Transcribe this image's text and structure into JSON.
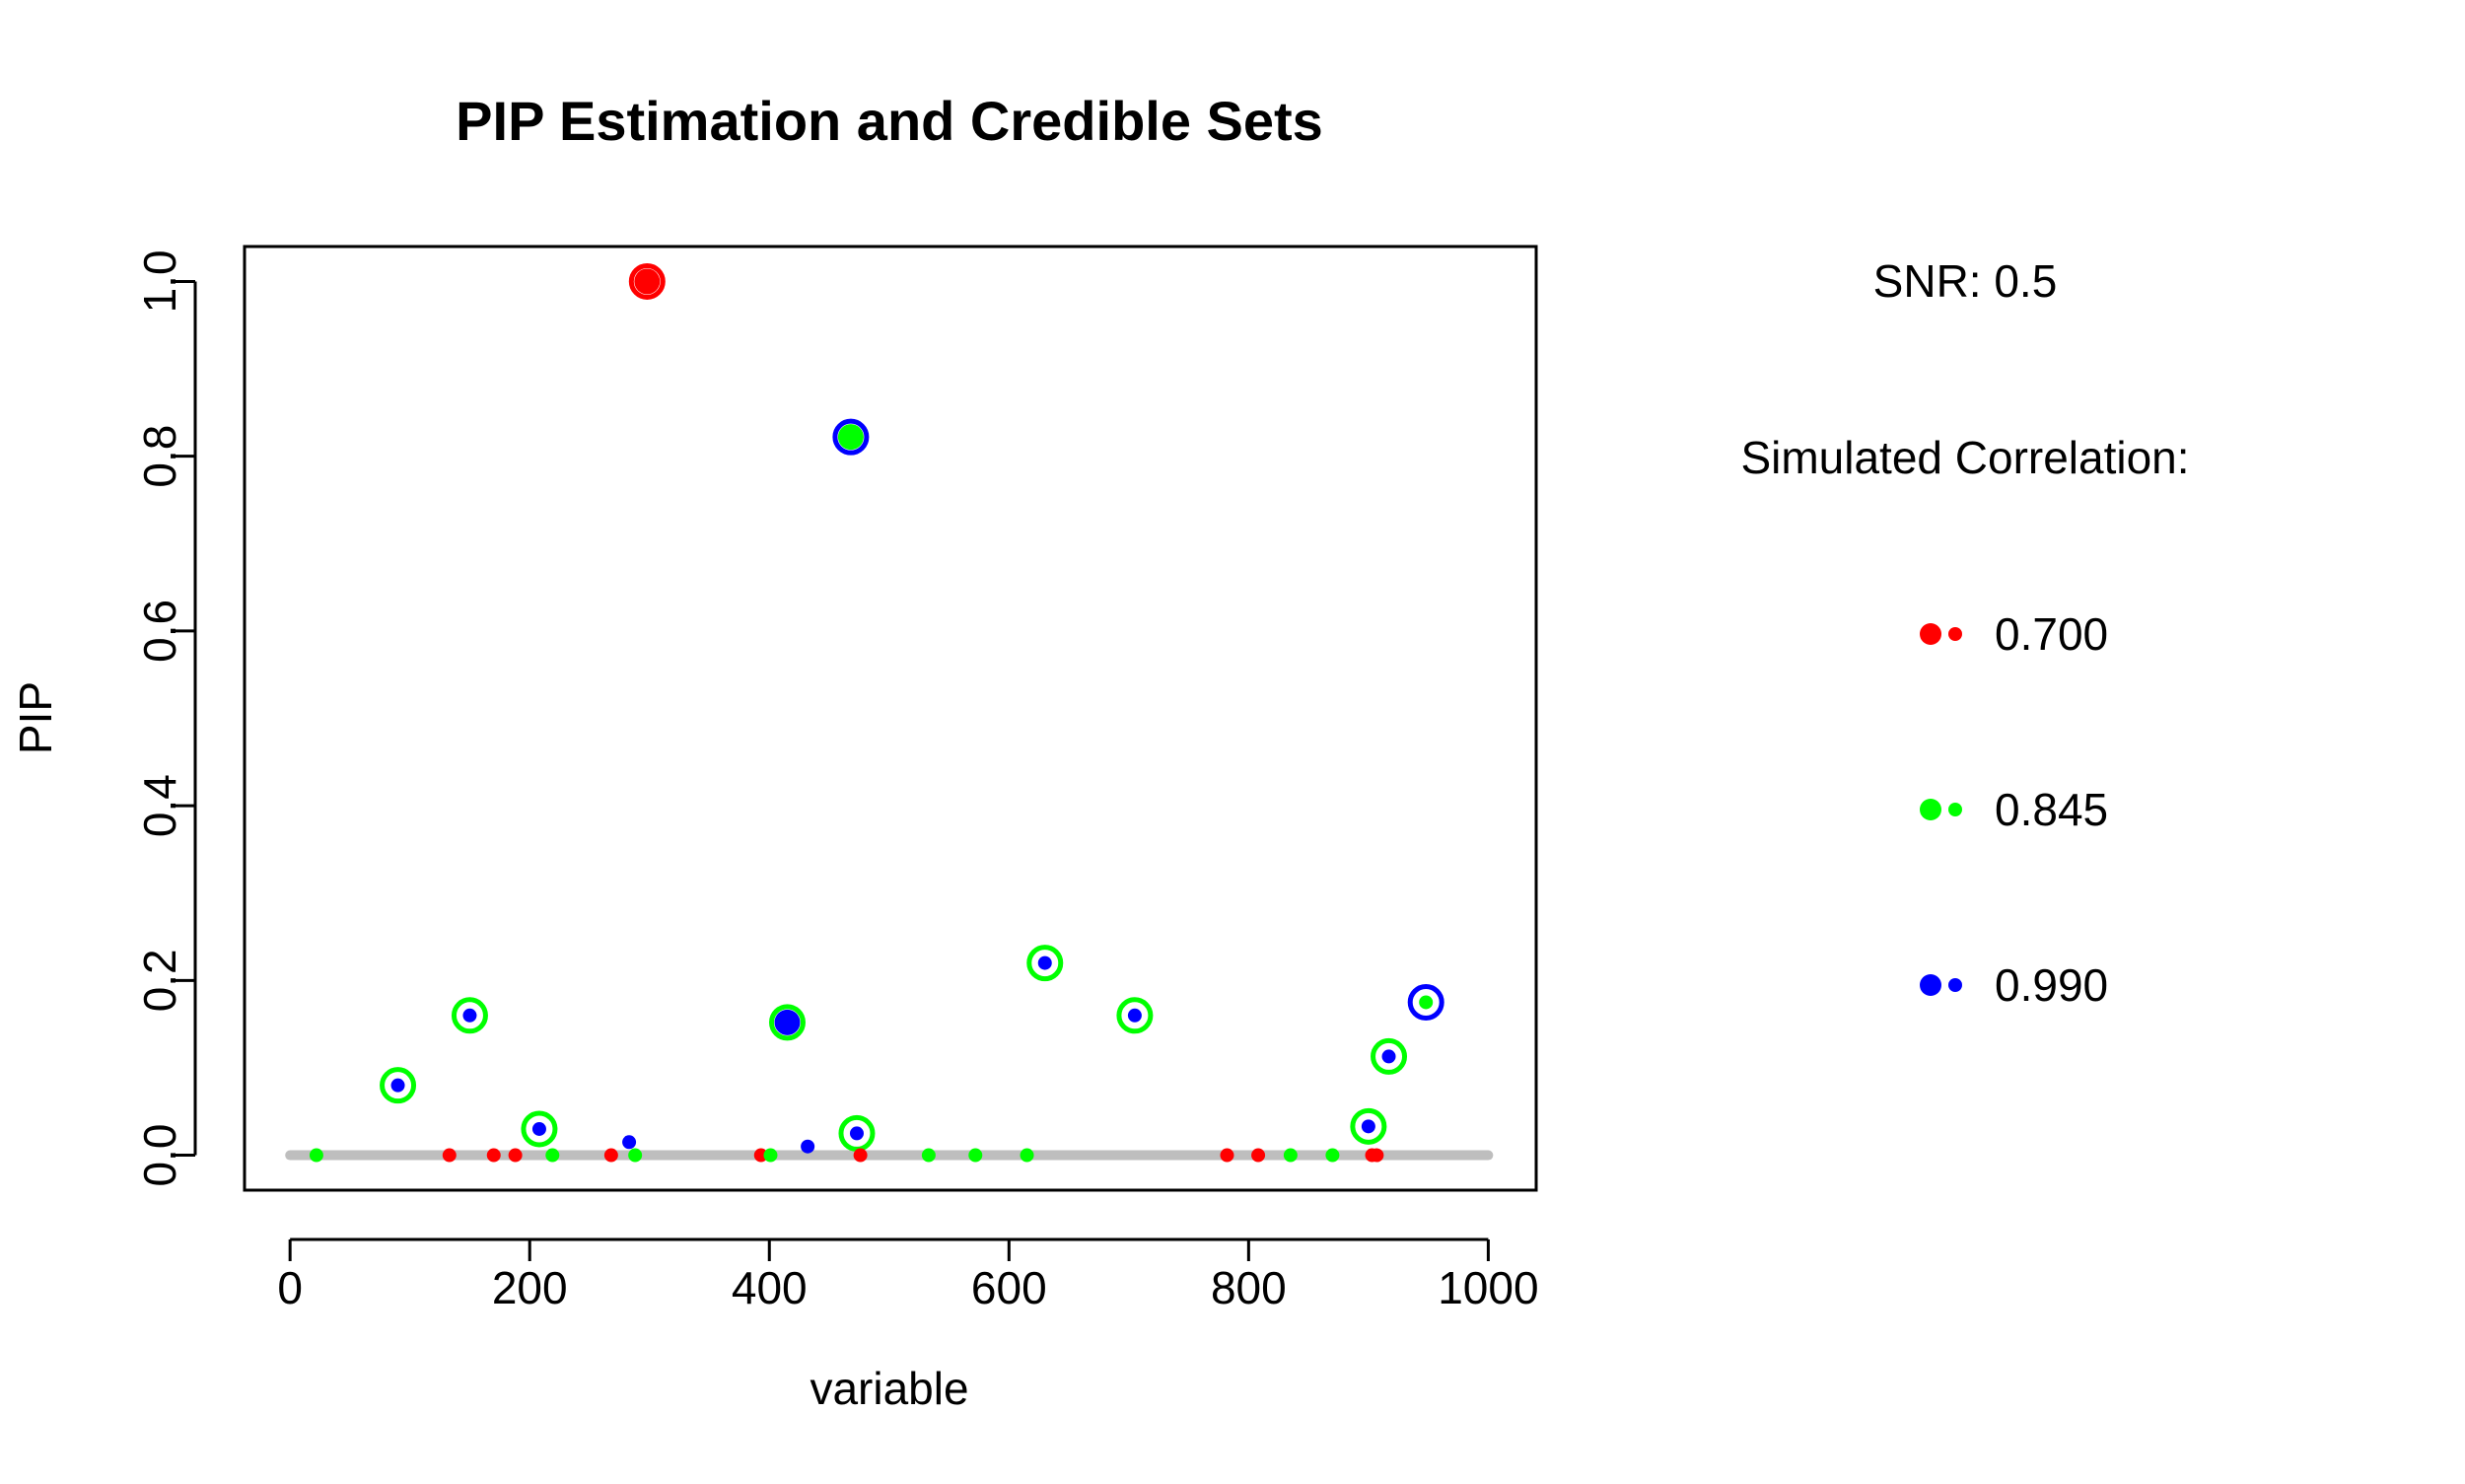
{
  "chart_data": {
    "type": "scatter",
    "title": "PIP Estimation and Credible Sets",
    "xlabel": "variable",
    "ylabel": "PIP",
    "xlim": [
      -38,
      1040
    ],
    "ylim": [
      -0.04,
      1.04
    ],
    "x_ticks": [
      0,
      200,
      400,
      600,
      800,
      1000
    ],
    "x_tick_labels": [
      "0",
      "200",
      "400",
      "600",
      "800",
      "1000"
    ],
    "y_ticks": [
      0.0,
      0.2,
      0.4,
      0.6,
      0.8,
      1.0
    ],
    "y_tick_labels": [
      "0.0",
      "0.2",
      "0.4",
      "0.6",
      "0.8",
      "1.0"
    ],
    "grid": false,
    "baseline": {
      "y": 0,
      "x_from": 0,
      "x_to": 1000,
      "color": "#bebebe"
    },
    "snr_label": "SNR: 0.5",
    "legend_title": "Simulated Correlation:",
    "legend_position": "right",
    "series": [
      {
        "name": "0.700",
        "color": "#ff0000",
        "points": [
          {
            "x": 133,
            "y": 0.0
          },
          {
            "x": 170,
            "y": 0.0
          },
          {
            "x": 188,
            "y": 0.0
          },
          {
            "x": 268,
            "y": 0.0
          },
          {
            "x": 298,
            "y": 1.0
          },
          {
            "x": 393,
            "y": 0.0
          },
          {
            "x": 476,
            "y": 0.0
          },
          {
            "x": 782,
            "y": 0.0
          },
          {
            "x": 808,
            "y": 0.0
          },
          {
            "x": 903,
            "y": 0.0
          },
          {
            "x": 907,
            "y": 0.0
          }
        ],
        "credible_sets": [
          {
            "x": 298,
            "y": 1.0,
            "ring": "#ff0000"
          }
        ]
      },
      {
        "name": "0.845",
        "color": "#00ff00",
        "points": [
          {
            "x": 22,
            "y": 0.0
          },
          {
            "x": 219,
            "y": 0.0
          },
          {
            "x": 288,
            "y": 0.0
          },
          {
            "x": 401,
            "y": 0.0
          },
          {
            "x": 468,
            "y": 0.822
          },
          {
            "x": 533,
            "y": 0.0
          },
          {
            "x": 572,
            "y": 0.0
          },
          {
            "x": 615,
            "y": 0.0
          },
          {
            "x": 835,
            "y": 0.0
          },
          {
            "x": 870,
            "y": 0.0
          },
          {
            "x": 948,
            "y": 0.175
          }
        ],
        "credible_sets": [
          {
            "x": 468,
            "y": 0.822,
            "ring": "#0000ff"
          },
          {
            "x": 948,
            "y": 0.175,
            "ring": "#0000ff"
          }
        ]
      },
      {
        "name": "0.990",
        "color": "#0000ff",
        "points": [
          {
            "x": 90,
            "y": 0.08
          },
          {
            "x": 150,
            "y": 0.16
          },
          {
            "x": 208,
            "y": 0.03
          },
          {
            "x": 283,
            "y": 0.015
          },
          {
            "x": 415,
            "y": 0.152
          },
          {
            "x": 432,
            "y": 0.01
          },
          {
            "x": 473,
            "y": 0.025
          },
          {
            "x": 630,
            "y": 0.22
          },
          {
            "x": 705,
            "y": 0.16
          },
          {
            "x": 900,
            "y": 0.033
          },
          {
            "x": 917,
            "y": 0.113
          }
        ],
        "credible_sets": [
          {
            "x": 90,
            "y": 0.08,
            "ring": "#00ff00"
          },
          {
            "x": 150,
            "y": 0.16,
            "ring": "#00ff00"
          },
          {
            "x": 208,
            "y": 0.03,
            "ring": "#00ff00"
          },
          {
            "x": 415,
            "y": 0.152,
            "ring": "#00ff00"
          },
          {
            "x": 473,
            "y": 0.025,
            "ring": "#00ff00"
          },
          {
            "x": 630,
            "y": 0.22,
            "ring": "#00ff00"
          },
          {
            "x": 705,
            "y": 0.16,
            "ring": "#00ff00"
          },
          {
            "x": 900,
            "y": 0.033,
            "ring": "#00ff00"
          },
          {
            "x": 917,
            "y": 0.113,
            "ring": "#00ff00"
          }
        ]
      }
    ],
    "emphasized_points": [
      {
        "x": 298,
        "y": 1.0,
        "color": "#ff0000"
      },
      {
        "x": 468,
        "y": 0.822,
        "color": "#00ff00"
      },
      {
        "x": 415,
        "y": 0.152,
        "color": "#0000ff"
      }
    ]
  }
}
